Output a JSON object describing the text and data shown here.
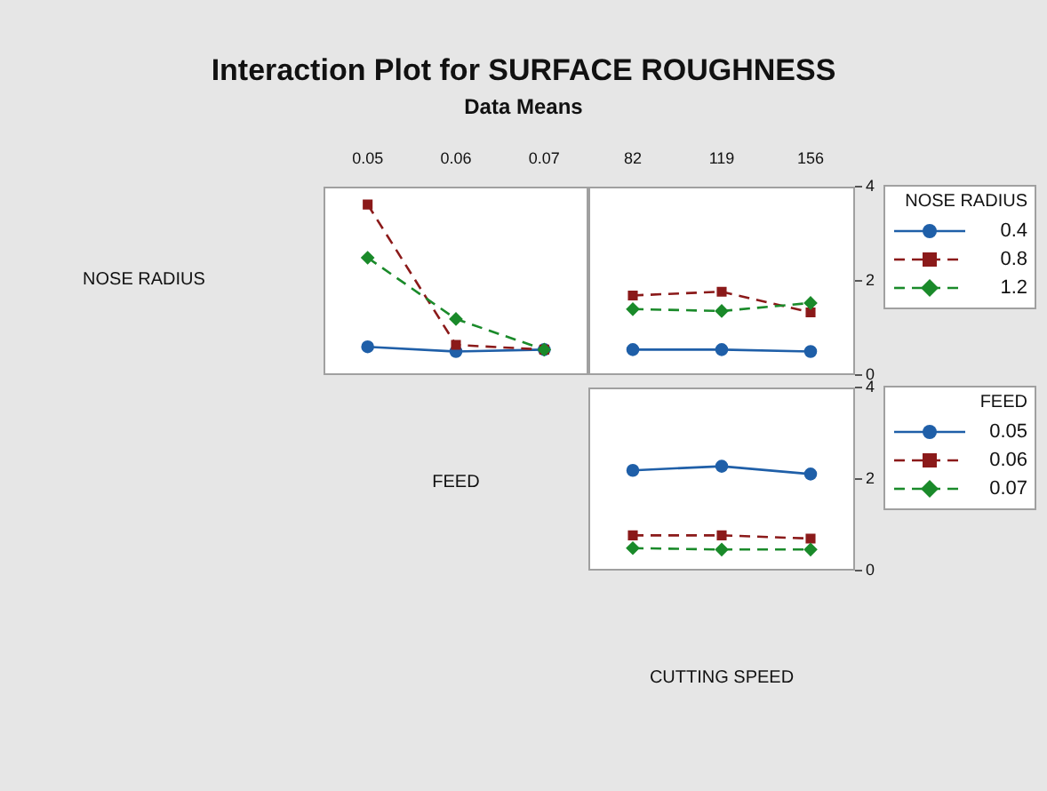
{
  "chart_data": [
    {
      "type": "line",
      "title": "Interaction Plot for SURFACE ROUGHNESS",
      "subtitle": "Data Means",
      "ylabel": "NOSE RADIUS",
      "xlabel": "FEED",
      "categories": [
        "0.05",
        "0.06",
        "0.07"
      ],
      "ylim": [
        0,
        4
      ],
      "yticks": [
        0,
        2,
        4
      ],
      "tick_labels": "x",
      "legend": false,
      "series": [
        {
          "color": "#1f5fa8",
          "marker": "circle",
          "line_style": "solid",
          "values": [
            0.6,
            0.5,
            0.54
          ]
        },
        {
          "color": "#8b1a1a",
          "marker": "square",
          "line_style": "dashed",
          "values": [
            3.62,
            0.64,
            0.54
          ]
        },
        {
          "color": "#1a8a2a",
          "marker": "diamond",
          "line_style": "dashed",
          "values": [
            2.49,
            1.19,
            0.54
          ]
        }
      ]
    },
    {
      "type": "line",
      "categories": [
        "82",
        "119",
        "156"
      ],
      "ylim": [
        0,
        4
      ],
      "yticks": [
        0,
        2,
        4
      ],
      "legend": "right",
      "legend_title": "NOSE RADIUS",
      "series": [
        {
          "name": "0.4",
          "color": "#1f5fa8",
          "marker": "circle",
          "line_style": "solid",
          "values": [
            0.54,
            0.54,
            0.5
          ]
        },
        {
          "name": "0.8",
          "color": "#8b1a1a",
          "marker": "square",
          "line_style": "dashed",
          "values": [
            1.69,
            1.77,
            1.33
          ]
        },
        {
          "name": "1.2",
          "color": "#1a8a2a",
          "marker": "diamond",
          "line_style": "dashed",
          "values": [
            1.4,
            1.36,
            1.53
          ]
        }
      ]
    },
    {
      "type": "line",
      "xlabel": "CUTTING SPEED",
      "categories": [
        "82",
        "119",
        "156"
      ],
      "ylim": [
        0,
        4
      ],
      "yticks": [
        0,
        2,
        4
      ],
      "tick_labels": "y",
      "legend": "right",
      "legend_title": "FEED",
      "series": [
        {
          "name": "0.05",
          "color": "#1f5fa8",
          "marker": "circle",
          "line_style": "solid",
          "values": [
            2.19,
            2.28,
            2.11
          ]
        },
        {
          "name": "0.06",
          "color": "#8b1a1a",
          "marker": "square",
          "line_style": "dashed",
          "values": [
            0.77,
            0.77,
            0.7
          ]
        },
        {
          "name": "0.07",
          "color": "#1a8a2a",
          "marker": "diamond",
          "line_style": "dashed",
          "values": [
            0.49,
            0.46,
            0.46
          ]
        }
      ]
    }
  ]
}
